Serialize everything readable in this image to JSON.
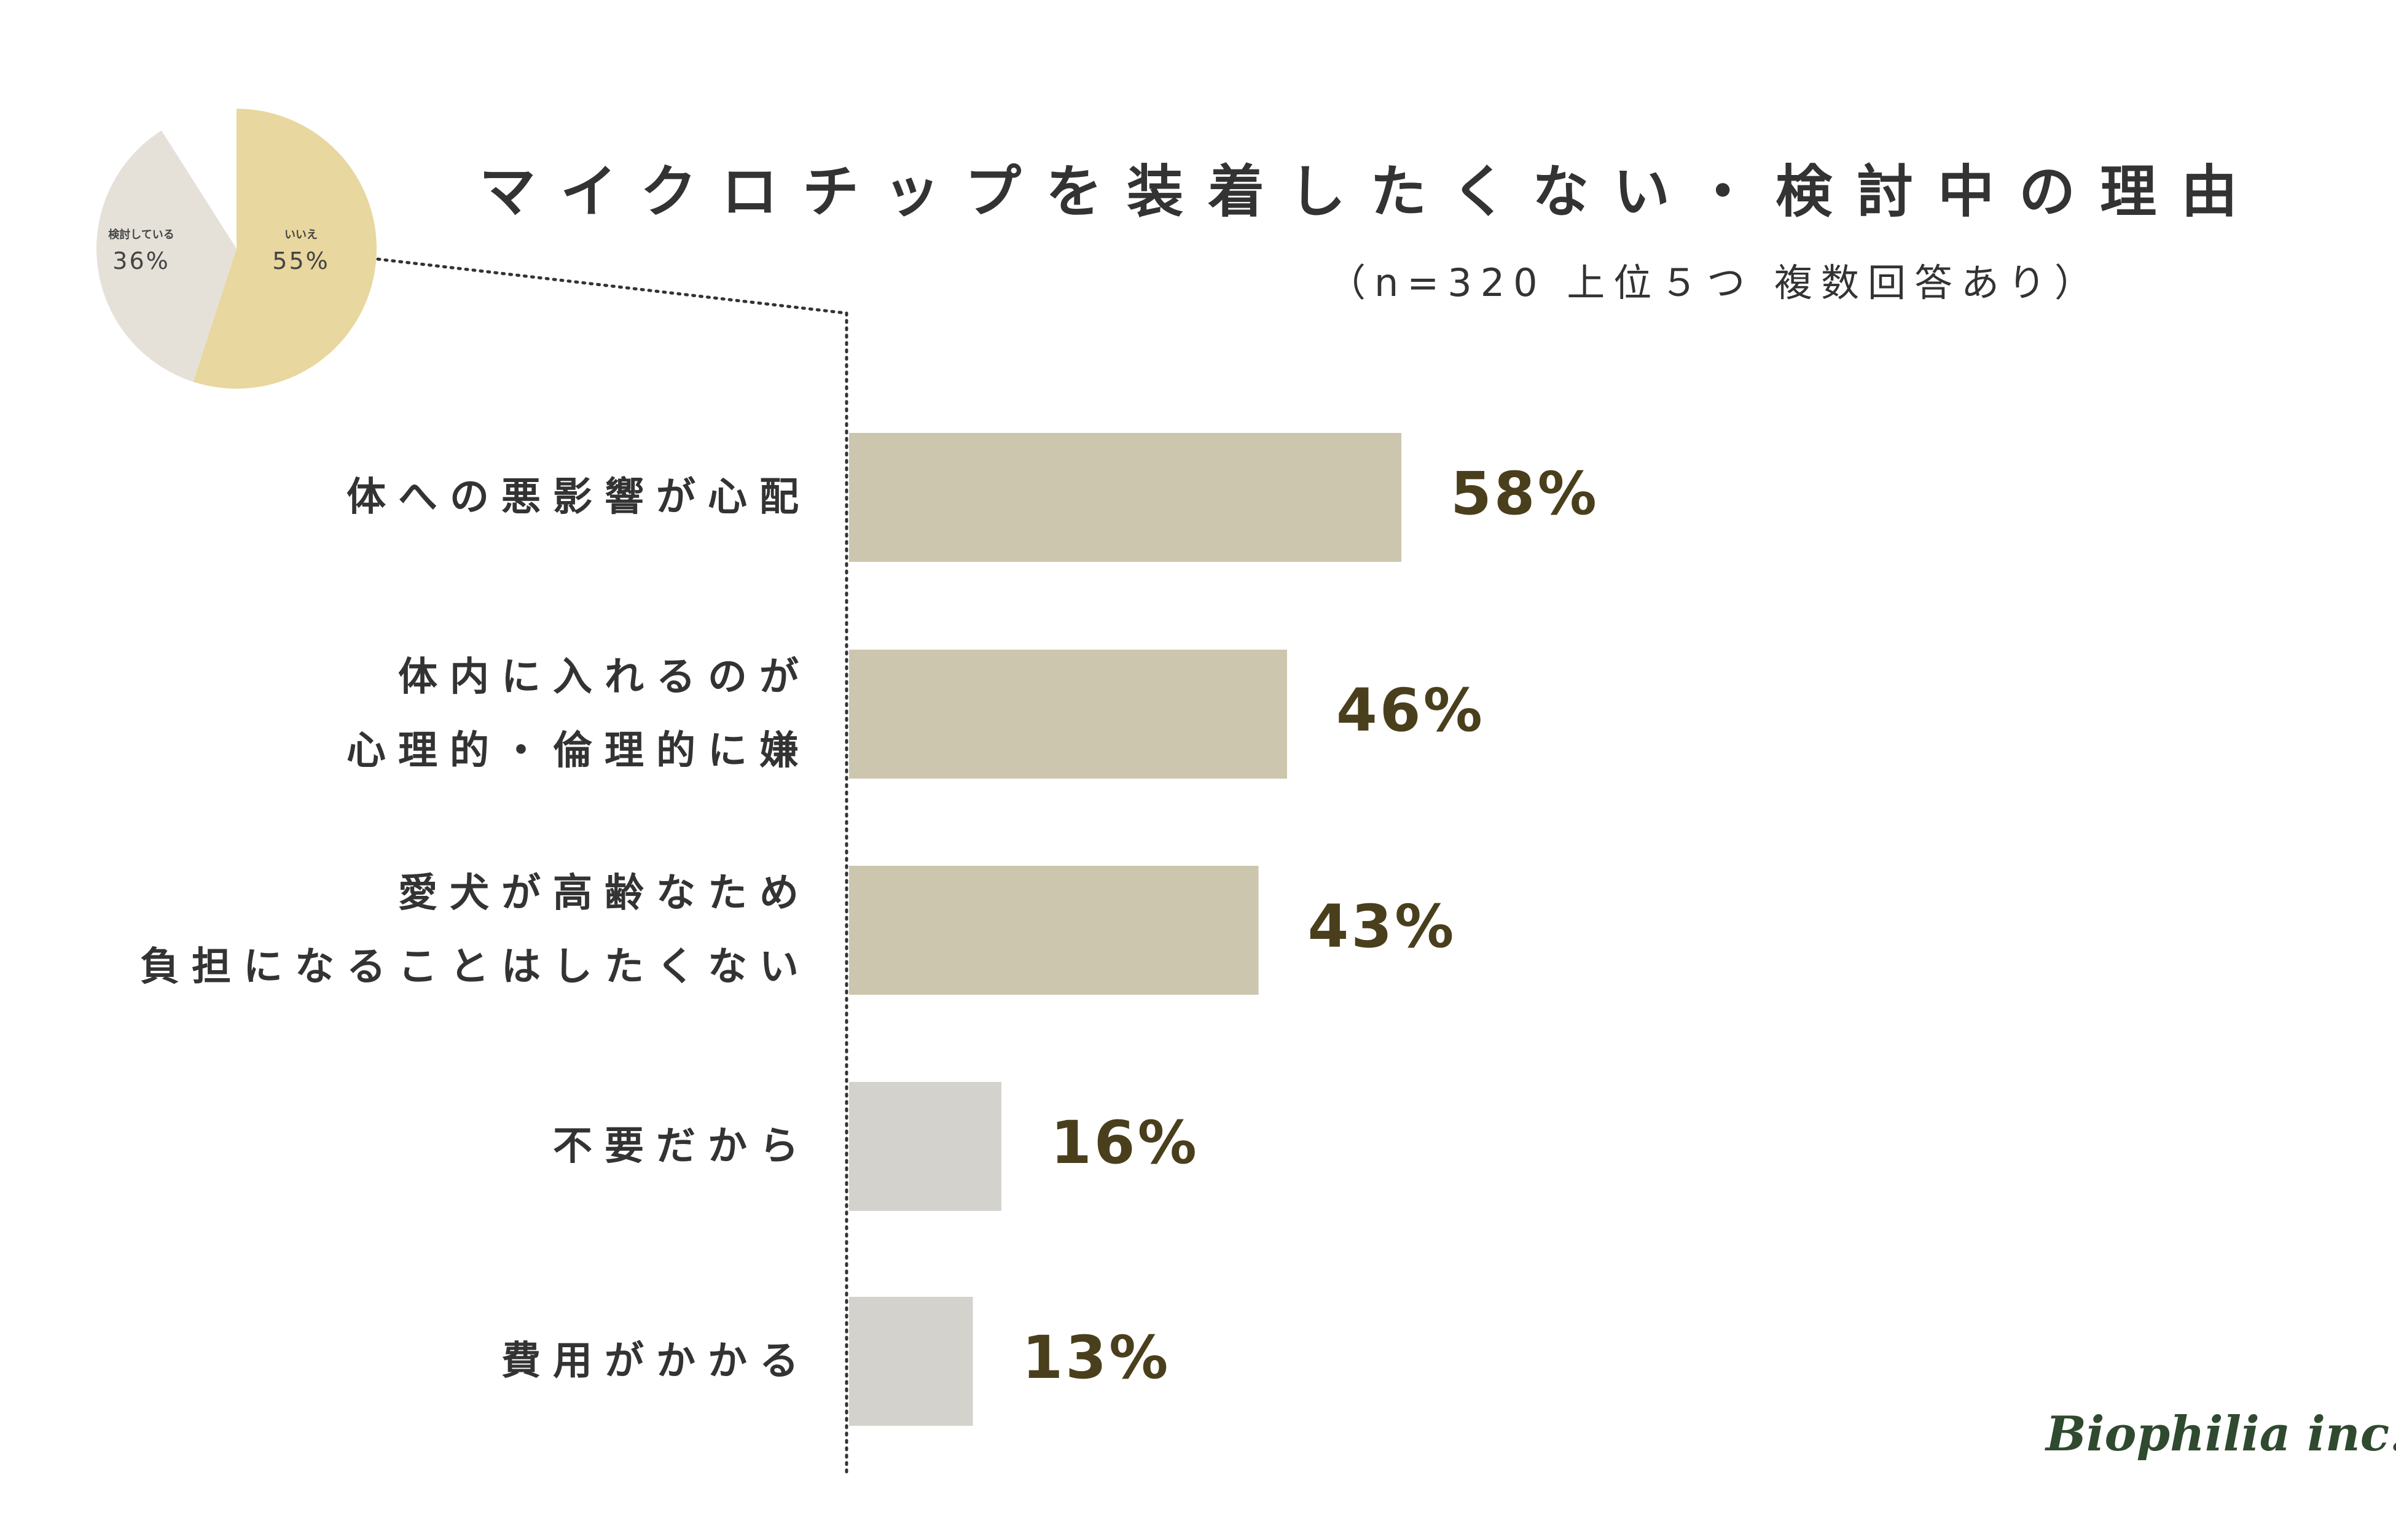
{
  "title": "マイクロチップを装着したくない・検討中の理由",
  "subtitle": "（n=320 上位５つ 複数回答あり）",
  "logo": "Biophilia inc.",
  "colors": {
    "bar_primary": "#cbc6ad",
    "bar_secondary": "#d3d2cc",
    "pie_yes": "#e8d79e",
    "pie_considering": "#e5e1d9",
    "value_text": "#4a3f1c"
  },
  "pie": {
    "slices": [
      {
        "label": "いいえ",
        "value_label": "55%",
        "value": 55,
        "color": "#e8d79e"
      },
      {
        "label": "検討している",
        "value_label": "36%",
        "value": 36,
        "color": "#e5e1d9"
      }
    ]
  },
  "chart_data": {
    "type": "bar",
    "orientation": "horizontal",
    "categories": [
      [
        "体への悪影響が心配"
      ],
      [
        "体内に入れるのが",
        "心理的・倫理的に嫌"
      ],
      [
        "愛犬が高齢なため",
        "負担になることはしたくない"
      ],
      [
        "不要だから"
      ],
      [
        "費用がかかる"
      ]
    ],
    "values": [
      58,
      46,
      43,
      16,
      13
    ],
    "value_labels": [
      "58%",
      "46%",
      "43%",
      "16%",
      "13%"
    ],
    "highlight": [
      true,
      true,
      true,
      false,
      false
    ],
    "unit": "%",
    "xlim": [
      0,
      100
    ],
    "grid": false
  }
}
